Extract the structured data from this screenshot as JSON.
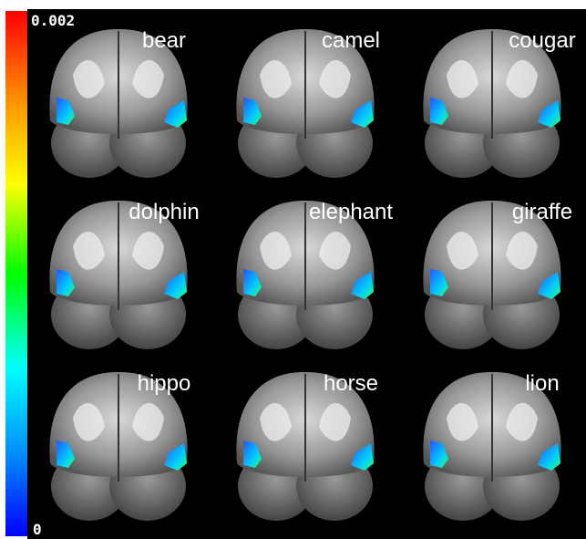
{
  "colorbar": {
    "max_label": "0.002",
    "min_label": "0"
  },
  "panels": [
    {
      "label": "bear"
    },
    {
      "label": "camel"
    },
    {
      "label": "cougar"
    },
    {
      "label": "dolphin"
    },
    {
      "label": "elephant"
    },
    {
      "label": "giraffe"
    },
    {
      "label": "hippo"
    },
    {
      "label": "horse"
    },
    {
      "label": "lion"
    }
  ]
}
